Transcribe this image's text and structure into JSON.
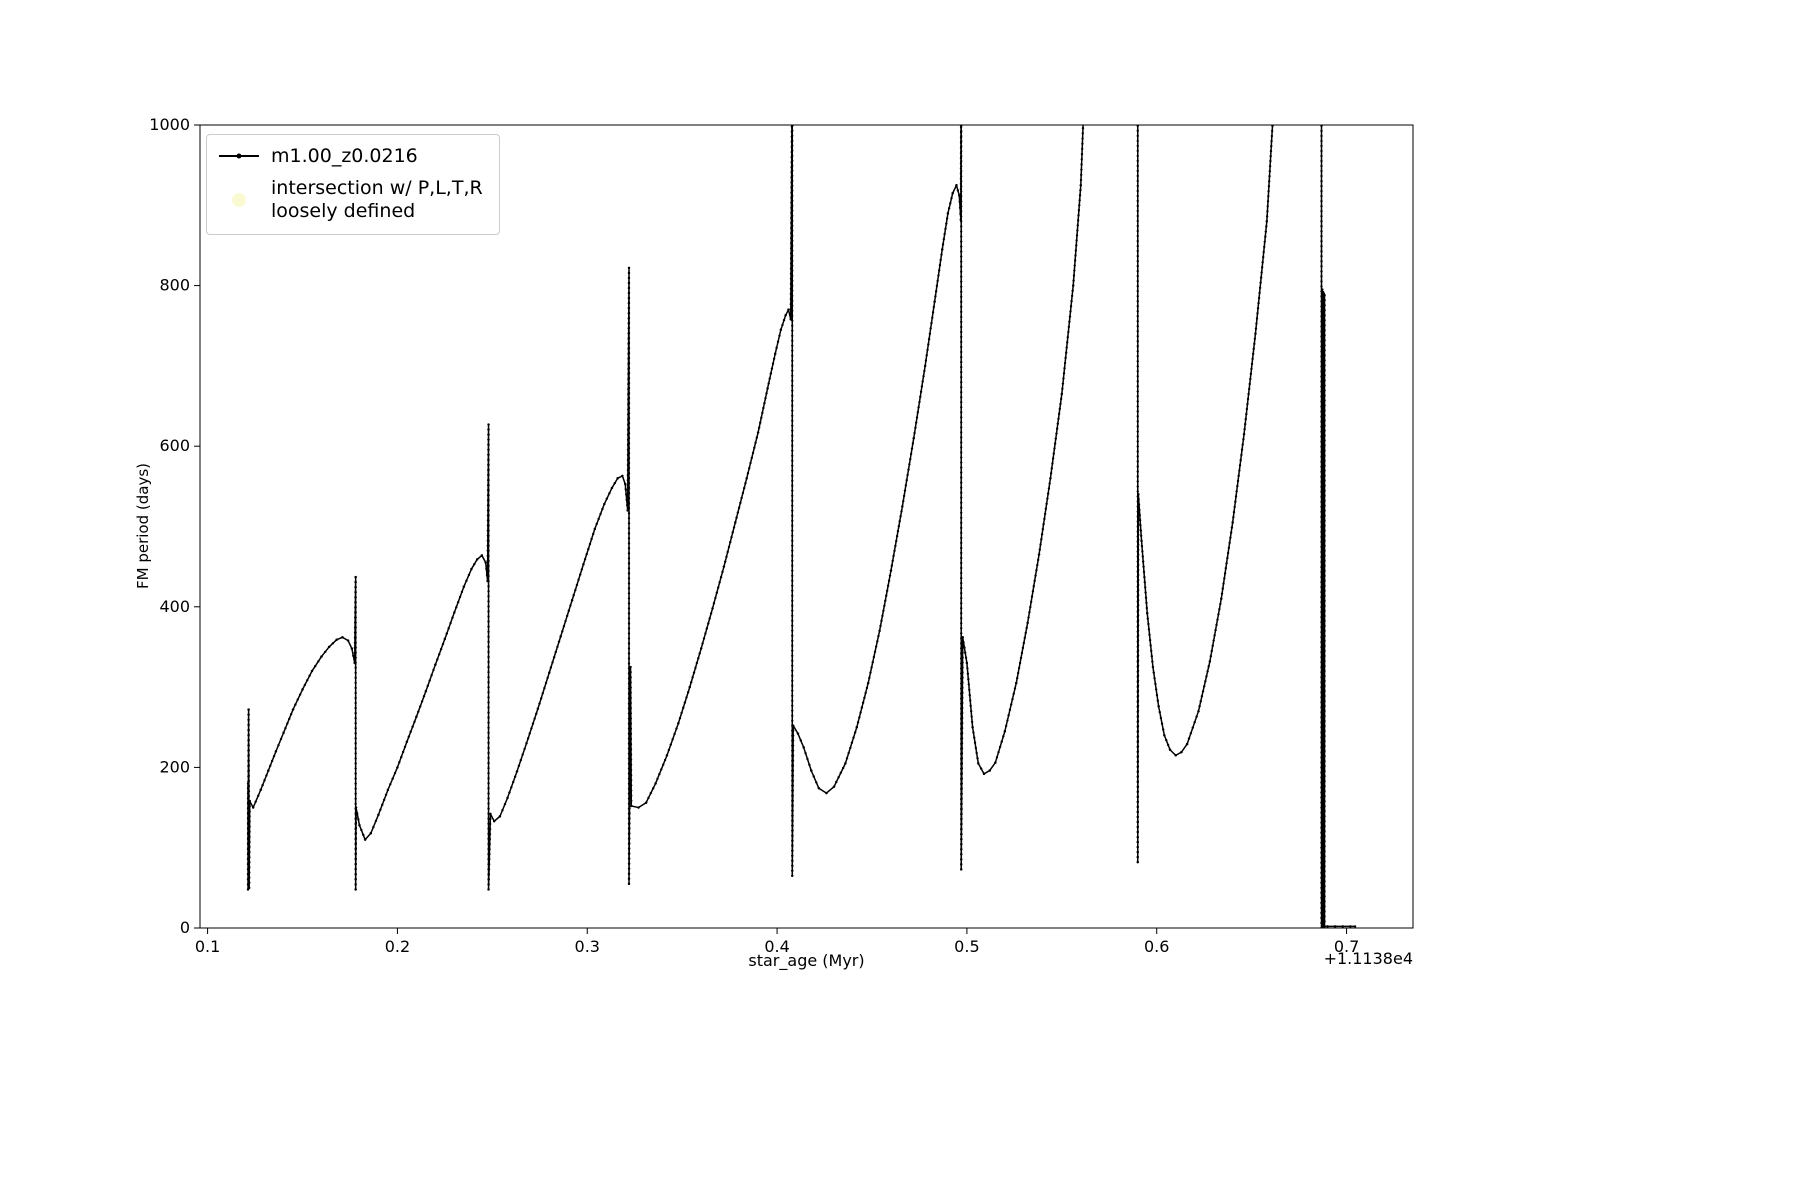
{
  "chart_data": {
    "type": "line",
    "title": "",
    "xlabel": "star_age (Myr)",
    "ylabel": "FM period (days)",
    "x_offset_label": "+1.1138e4",
    "xlim": [
      0.096,
      0.735
    ],
    "ylim": [
      0,
      1000
    ],
    "x_ticks": [
      0.1,
      0.2,
      0.3,
      0.4,
      0.5,
      0.6,
      0.7
    ],
    "y_ticks": [
      0,
      200,
      400,
      600,
      800,
      1000
    ],
    "grid": false,
    "legend_position": "upper left",
    "legend": [
      {
        "label": "m1.00_z0.0216",
        "marker": "line-dot",
        "color": "#000000"
      },
      {
        "label_lines": [
          "intersection w/ P,L,T,R",
          "loosely defined"
        ],
        "marker": "dot",
        "color": "#fafad2"
      }
    ],
    "series": [
      {
        "name": "m1.00_z0.0216",
        "color": "#000000",
        "points": [
          [
            0.1213,
            180
          ],
          [
            0.1213,
            48
          ],
          [
            0.1216,
            272
          ],
          [
            0.1219,
            50
          ],
          [
            0.1222,
            158
          ],
          [
            0.124,
            150
          ],
          [
            0.128,
            172
          ],
          [
            0.132,
            196
          ],
          [
            0.136,
            220
          ],
          [
            0.14,
            243
          ],
          [
            0.145,
            272
          ],
          [
            0.15,
            297
          ],
          [
            0.155,
            320
          ],
          [
            0.16,
            338
          ],
          [
            0.164,
            350
          ],
          [
            0.168,
            359
          ],
          [
            0.171,
            362
          ],
          [
            0.174,
            358
          ],
          [
            0.176,
            348
          ],
          [
            0.1775,
            330
          ],
          [
            0.178,
            437
          ],
          [
            0.178,
            48
          ],
          [
            0.1782,
            150
          ],
          [
            0.18,
            128
          ],
          [
            0.183,
            110
          ],
          [
            0.186,
            118
          ],
          [
            0.19,
            141
          ],
          [
            0.195,
            172
          ],
          [
            0.2,
            200
          ],
          [
            0.205,
            232
          ],
          [
            0.21,
            263
          ],
          [
            0.215,
            295
          ],
          [
            0.22,
            328
          ],
          [
            0.225,
            360
          ],
          [
            0.23,
            393
          ],
          [
            0.235,
            425
          ],
          [
            0.239,
            447
          ],
          [
            0.242,
            459
          ],
          [
            0.2445,
            464
          ],
          [
            0.2465,
            455
          ],
          [
            0.2475,
            432
          ],
          [
            0.248,
            627
          ],
          [
            0.248,
            48
          ],
          [
            0.249,
            142
          ],
          [
            0.251,
            133
          ],
          [
            0.254,
            139
          ],
          [
            0.258,
            162
          ],
          [
            0.263,
            195
          ],
          [
            0.268,
            230
          ],
          [
            0.274,
            273
          ],
          [
            0.28,
            318
          ],
          [
            0.286,
            363
          ],
          [
            0.292,
            408
          ],
          [
            0.298,
            453
          ],
          [
            0.304,
            497
          ],
          [
            0.309,
            528
          ],
          [
            0.313,
            548
          ],
          [
            0.316,
            560
          ],
          [
            0.3185,
            563
          ],
          [
            0.32,
            553
          ],
          [
            0.3213,
            520
          ],
          [
            0.322,
            822
          ],
          [
            0.322,
            55
          ],
          [
            0.3228,
            325
          ],
          [
            0.3232,
            152
          ],
          [
            0.327,
            150
          ],
          [
            0.331,
            156
          ],
          [
            0.336,
            180
          ],
          [
            0.342,
            215
          ],
          [
            0.348,
            255
          ],
          [
            0.354,
            300
          ],
          [
            0.36,
            348
          ],
          [
            0.366,
            398
          ],
          [
            0.372,
            450
          ],
          [
            0.378,
            505
          ],
          [
            0.384,
            560
          ],
          [
            0.39,
            617
          ],
          [
            0.395,
            672
          ],
          [
            0.399,
            715
          ],
          [
            0.402,
            745
          ],
          [
            0.4045,
            763
          ],
          [
            0.406,
            770
          ],
          [
            0.4072,
            758
          ],
          [
            0.408,
            1080
          ],
          [
            0.408,
            65
          ],
          [
            0.4085,
            252
          ],
          [
            0.411,
            242
          ],
          [
            0.414,
            225
          ],
          [
            0.418,
            196
          ],
          [
            0.422,
            174
          ],
          [
            0.426,
            168
          ],
          [
            0.43,
            176
          ],
          [
            0.436,
            205
          ],
          [
            0.442,
            250
          ],
          [
            0.448,
            305
          ],
          [
            0.454,
            370
          ],
          [
            0.46,
            445
          ],
          [
            0.466,
            525
          ],
          [
            0.472,
            610
          ],
          [
            0.478,
            700
          ],
          [
            0.483,
            780
          ],
          [
            0.487,
            845
          ],
          [
            0.49,
            890
          ],
          [
            0.4925,
            915
          ],
          [
            0.4945,
            925
          ],
          [
            0.496,
            912
          ],
          [
            0.4968,
            882
          ],
          [
            0.497,
            1080
          ],
          [
            0.497,
            73
          ],
          [
            0.4978,
            362
          ],
          [
            0.5,
            330
          ],
          [
            0.503,
            250
          ],
          [
            0.506,
            205
          ],
          [
            0.509,
            192
          ],
          [
            0.512,
            196
          ],
          [
            0.515,
            206
          ],
          [
            0.52,
            245
          ],
          [
            0.526,
            305
          ],
          [
            0.532,
            380
          ],
          [
            0.538,
            465
          ],
          [
            0.544,
            560
          ],
          [
            0.55,
            665
          ],
          [
            0.556,
            800
          ],
          [
            0.56,
            925
          ],
          [
            0.5625,
            1080
          ],
          [
            0.589,
            1080
          ],
          [
            0.59,
            1080
          ],
          [
            0.59,
            82
          ],
          [
            0.5903,
            540
          ],
          [
            0.592,
            482
          ],
          [
            0.595,
            392
          ],
          [
            0.598,
            325
          ],
          [
            0.601,
            276
          ],
          [
            0.604,
            240
          ],
          [
            0.607,
            222
          ],
          [
            0.61,
            215
          ],
          [
            0.613,
            219
          ],
          [
            0.616,
            229
          ],
          [
            0.622,
            270
          ],
          [
            0.628,
            332
          ],
          [
            0.634,
            410
          ],
          [
            0.64,
            505
          ],
          [
            0.646,
            615
          ],
          [
            0.652,
            740
          ],
          [
            0.658,
            880
          ],
          [
            0.663,
            1080
          ],
          [
            0.6868,
            1080
          ],
          [
            0.6868,
            0
          ],
          [
            0.6872,
            795
          ],
          [
            0.6872,
            0
          ],
          [
            0.6876,
            792
          ],
          [
            0.6876,
            0
          ],
          [
            0.688,
            790
          ],
          [
            0.688,
            0
          ],
          [
            0.6884,
            788
          ],
          [
            0.6884,
            2
          ],
          [
            0.69,
            2
          ],
          [
            0.694,
            2
          ],
          [
            0.698,
            2
          ],
          [
            0.702,
            2
          ],
          [
            0.7045,
            2
          ]
        ]
      }
    ]
  }
}
